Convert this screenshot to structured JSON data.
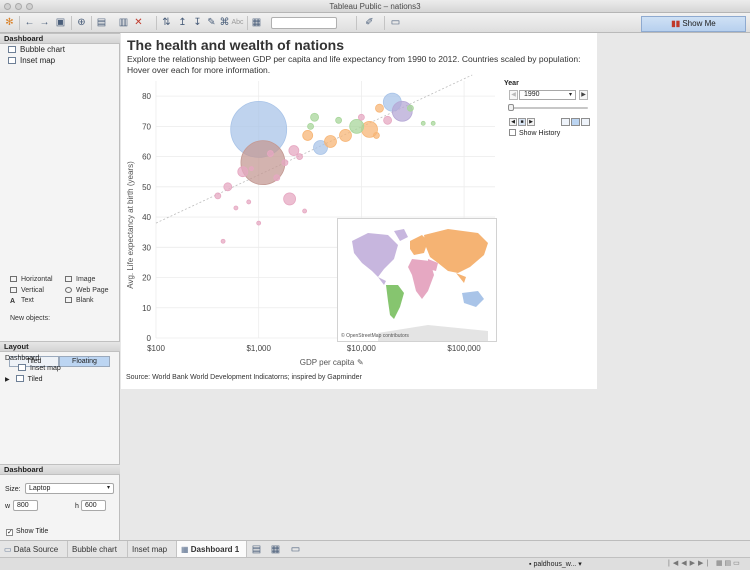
{
  "window": {
    "title": "Tableau Public – nations3"
  },
  "toolbar": {
    "show_me_label": "Show Me",
    "abc_label": "Abc"
  },
  "left_pane": {
    "dashboard_header": "Dashboard",
    "sheets": [
      {
        "label": "Bubble chart"
      },
      {
        "label": "Inset map"
      }
    ],
    "objects": [
      {
        "label": "Horizontal"
      },
      {
        "label": "Image"
      },
      {
        "label": "Vertical"
      },
      {
        "label": "Web Page"
      },
      {
        "label": "Text"
      },
      {
        "label": "Blank"
      }
    ],
    "new_objects_label": "New objects:",
    "tiled_label": "Tiled",
    "floating_label": "Floating",
    "layout_header": "Layout",
    "layout_root": "Dashboard",
    "layout_inset": "Inset map",
    "layout_tiled": "Tiled",
    "settings_header": "Dashboard",
    "size_label": "Size:",
    "size_value": "Laptop",
    "w_label": "w",
    "w_value": "800",
    "h_label": "h",
    "h_value": "600",
    "show_title_label": "Show Title"
  },
  "dashboard": {
    "title": "The health and wealth of nations",
    "subtitle": "Explore the relationship between GDP per capita and life expectancy from 1990 to 2012. Countries scaled by population: Hover over each for more information.",
    "source": "Source: World Bank World Development Indicatorns; inspired by Gapminder",
    "year_label": "Year",
    "year_value": "1990",
    "show_history_label": "Show History",
    "map_credit": "© OpenStreetMap contributors"
  },
  "chart_data": {
    "type": "scatter",
    "xlabel": "GDP per capita",
    "ylabel": "Avg. Life expectancy at birth (years)",
    "x_scale": "log",
    "xlim": [
      100,
      200000
    ],
    "ylim": [
      0,
      85
    ],
    "xticks": [
      "$100",
      "$1,000",
      "$10,000",
      "$100,000"
    ],
    "yticks": [
      0,
      10,
      20,
      30,
      40,
      50,
      60,
      70,
      80
    ],
    "points": [
      {
        "x": 1000,
        "y": 69,
        "size": 28,
        "color": "#a9c4e8"
      },
      {
        "x": 1100,
        "y": 58,
        "size": 22,
        "color": "#c49a94"
      },
      {
        "x": 20000,
        "y": 78,
        "size": 9,
        "color": "#a9c4e8"
      },
      {
        "x": 25000,
        "y": 75,
        "size": 10,
        "color": "#b6a8d6"
      },
      {
        "x": 12000,
        "y": 69,
        "size": 8,
        "color": "#f7b677"
      },
      {
        "x": 9000,
        "y": 70,
        "size": 7,
        "color": "#a8d69b"
      },
      {
        "x": 4000,
        "y": 63,
        "size": 7,
        "color": "#a9c4e8"
      },
      {
        "x": 3000,
        "y": 67,
        "size": 5,
        "color": "#f7b677"
      },
      {
        "x": 5000,
        "y": 65,
        "size": 6,
        "color": "#f7b677"
      },
      {
        "x": 7000,
        "y": 67,
        "size": 6,
        "color": "#f7b677"
      },
      {
        "x": 2200,
        "y": 62,
        "size": 5,
        "color": "#e6a8c2"
      },
      {
        "x": 2000,
        "y": 46,
        "size": 6,
        "color": "#e6a8c2"
      },
      {
        "x": 700,
        "y": 55,
        "size": 5,
        "color": "#e6a8c2"
      },
      {
        "x": 500,
        "y": 50,
        "size": 4,
        "color": "#e6a8c2"
      },
      {
        "x": 400,
        "y": 47,
        "size": 3,
        "color": "#e6a8c2"
      },
      {
        "x": 1500,
        "y": 53,
        "size": 3,
        "color": "#e6a8c2"
      },
      {
        "x": 600,
        "y": 43,
        "size": 2,
        "color": "#e6a8c2"
      },
      {
        "x": 800,
        "y": 45,
        "size": 2,
        "color": "#e6a8c2"
      },
      {
        "x": 450,
        "y": 32,
        "size": 2,
        "color": "#e6a8c2"
      },
      {
        "x": 2800,
        "y": 42,
        "size": 2,
        "color": "#e6a8c2"
      },
      {
        "x": 3500,
        "y": 73,
        "size": 4,
        "color": "#a8d69b"
      },
      {
        "x": 15000,
        "y": 76,
        "size": 4,
        "color": "#f7b677"
      },
      {
        "x": 18000,
        "y": 72,
        "size": 4,
        "color": "#e6a8c2"
      },
      {
        "x": 30000,
        "y": 76,
        "size": 3,
        "color": "#a8d69b"
      },
      {
        "x": 6000,
        "y": 72,
        "size": 3,
        "color": "#a8d69b"
      },
      {
        "x": 2500,
        "y": 60,
        "size": 3,
        "color": "#e6a8c2"
      },
      {
        "x": 1800,
        "y": 58,
        "size": 3,
        "color": "#e6a8c2"
      },
      {
        "x": 1300,
        "y": 61,
        "size": 3,
        "color": "#e6a8c2"
      },
      {
        "x": 850,
        "y": 56,
        "size": 2,
        "color": "#e6a8c2"
      },
      {
        "x": 10000,
        "y": 73,
        "size": 3,
        "color": "#e6a8c2"
      },
      {
        "x": 40000,
        "y": 71,
        "size": 2,
        "color": "#a8d69b"
      },
      {
        "x": 50000,
        "y": 71,
        "size": 2,
        "color": "#a8d69b"
      },
      {
        "x": 14000,
        "y": 67,
        "size": 3,
        "color": "#f7b677"
      },
      {
        "x": 3200,
        "y": 70,
        "size": 3,
        "color": "#a8d69b"
      },
      {
        "x": 1000,
        "y": 38,
        "size": 2,
        "color": "#e6a8c2"
      }
    ],
    "trendline": {
      "from": [
        100,
        38
      ],
      "to": [
        120000,
        87
      ]
    }
  },
  "tabs": {
    "data_source": "Data Source",
    "bubble_chart": "Bubble chart",
    "inset_map": "Inset map",
    "dashboard_1": "Dashboard 1"
  },
  "status": {
    "user": "paldhous_w..."
  }
}
